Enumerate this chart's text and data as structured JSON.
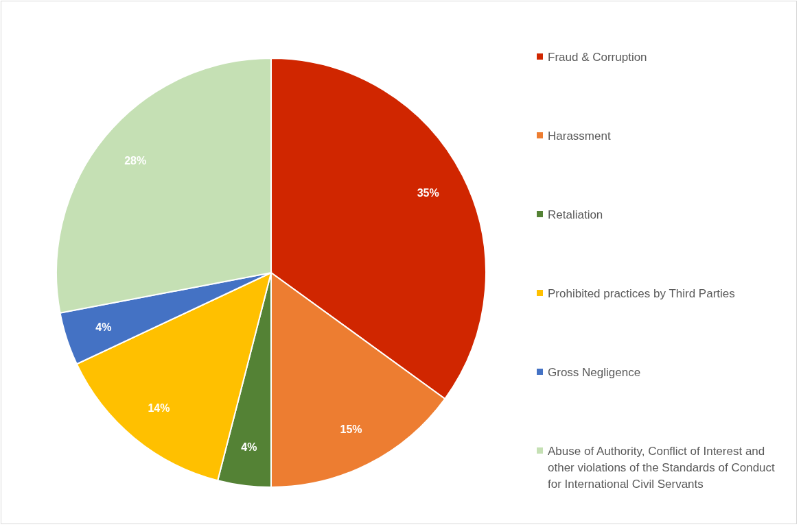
{
  "chart_data": {
    "type": "pie",
    "categories": [
      "Fraud & Corruption",
      "Harassment",
      "Retaliation",
      "Prohibited practices by Third Parties",
      "Gross Negligence",
      "Abuse of Authority, Conflict of Interest and other violations of the Standards of Conduct for International Civil Servants"
    ],
    "values": [
      35,
      15,
      4,
      14,
      4,
      28
    ],
    "value_labels": [
      "35%",
      "15%",
      "4%",
      "14%",
      "4%",
      "28%"
    ],
    "colors": [
      "#d02600",
      "#ed7d31",
      "#548235",
      "#ffc000",
      "#4472c4",
      "#c5e0b4"
    ],
    "legend": "right"
  }
}
